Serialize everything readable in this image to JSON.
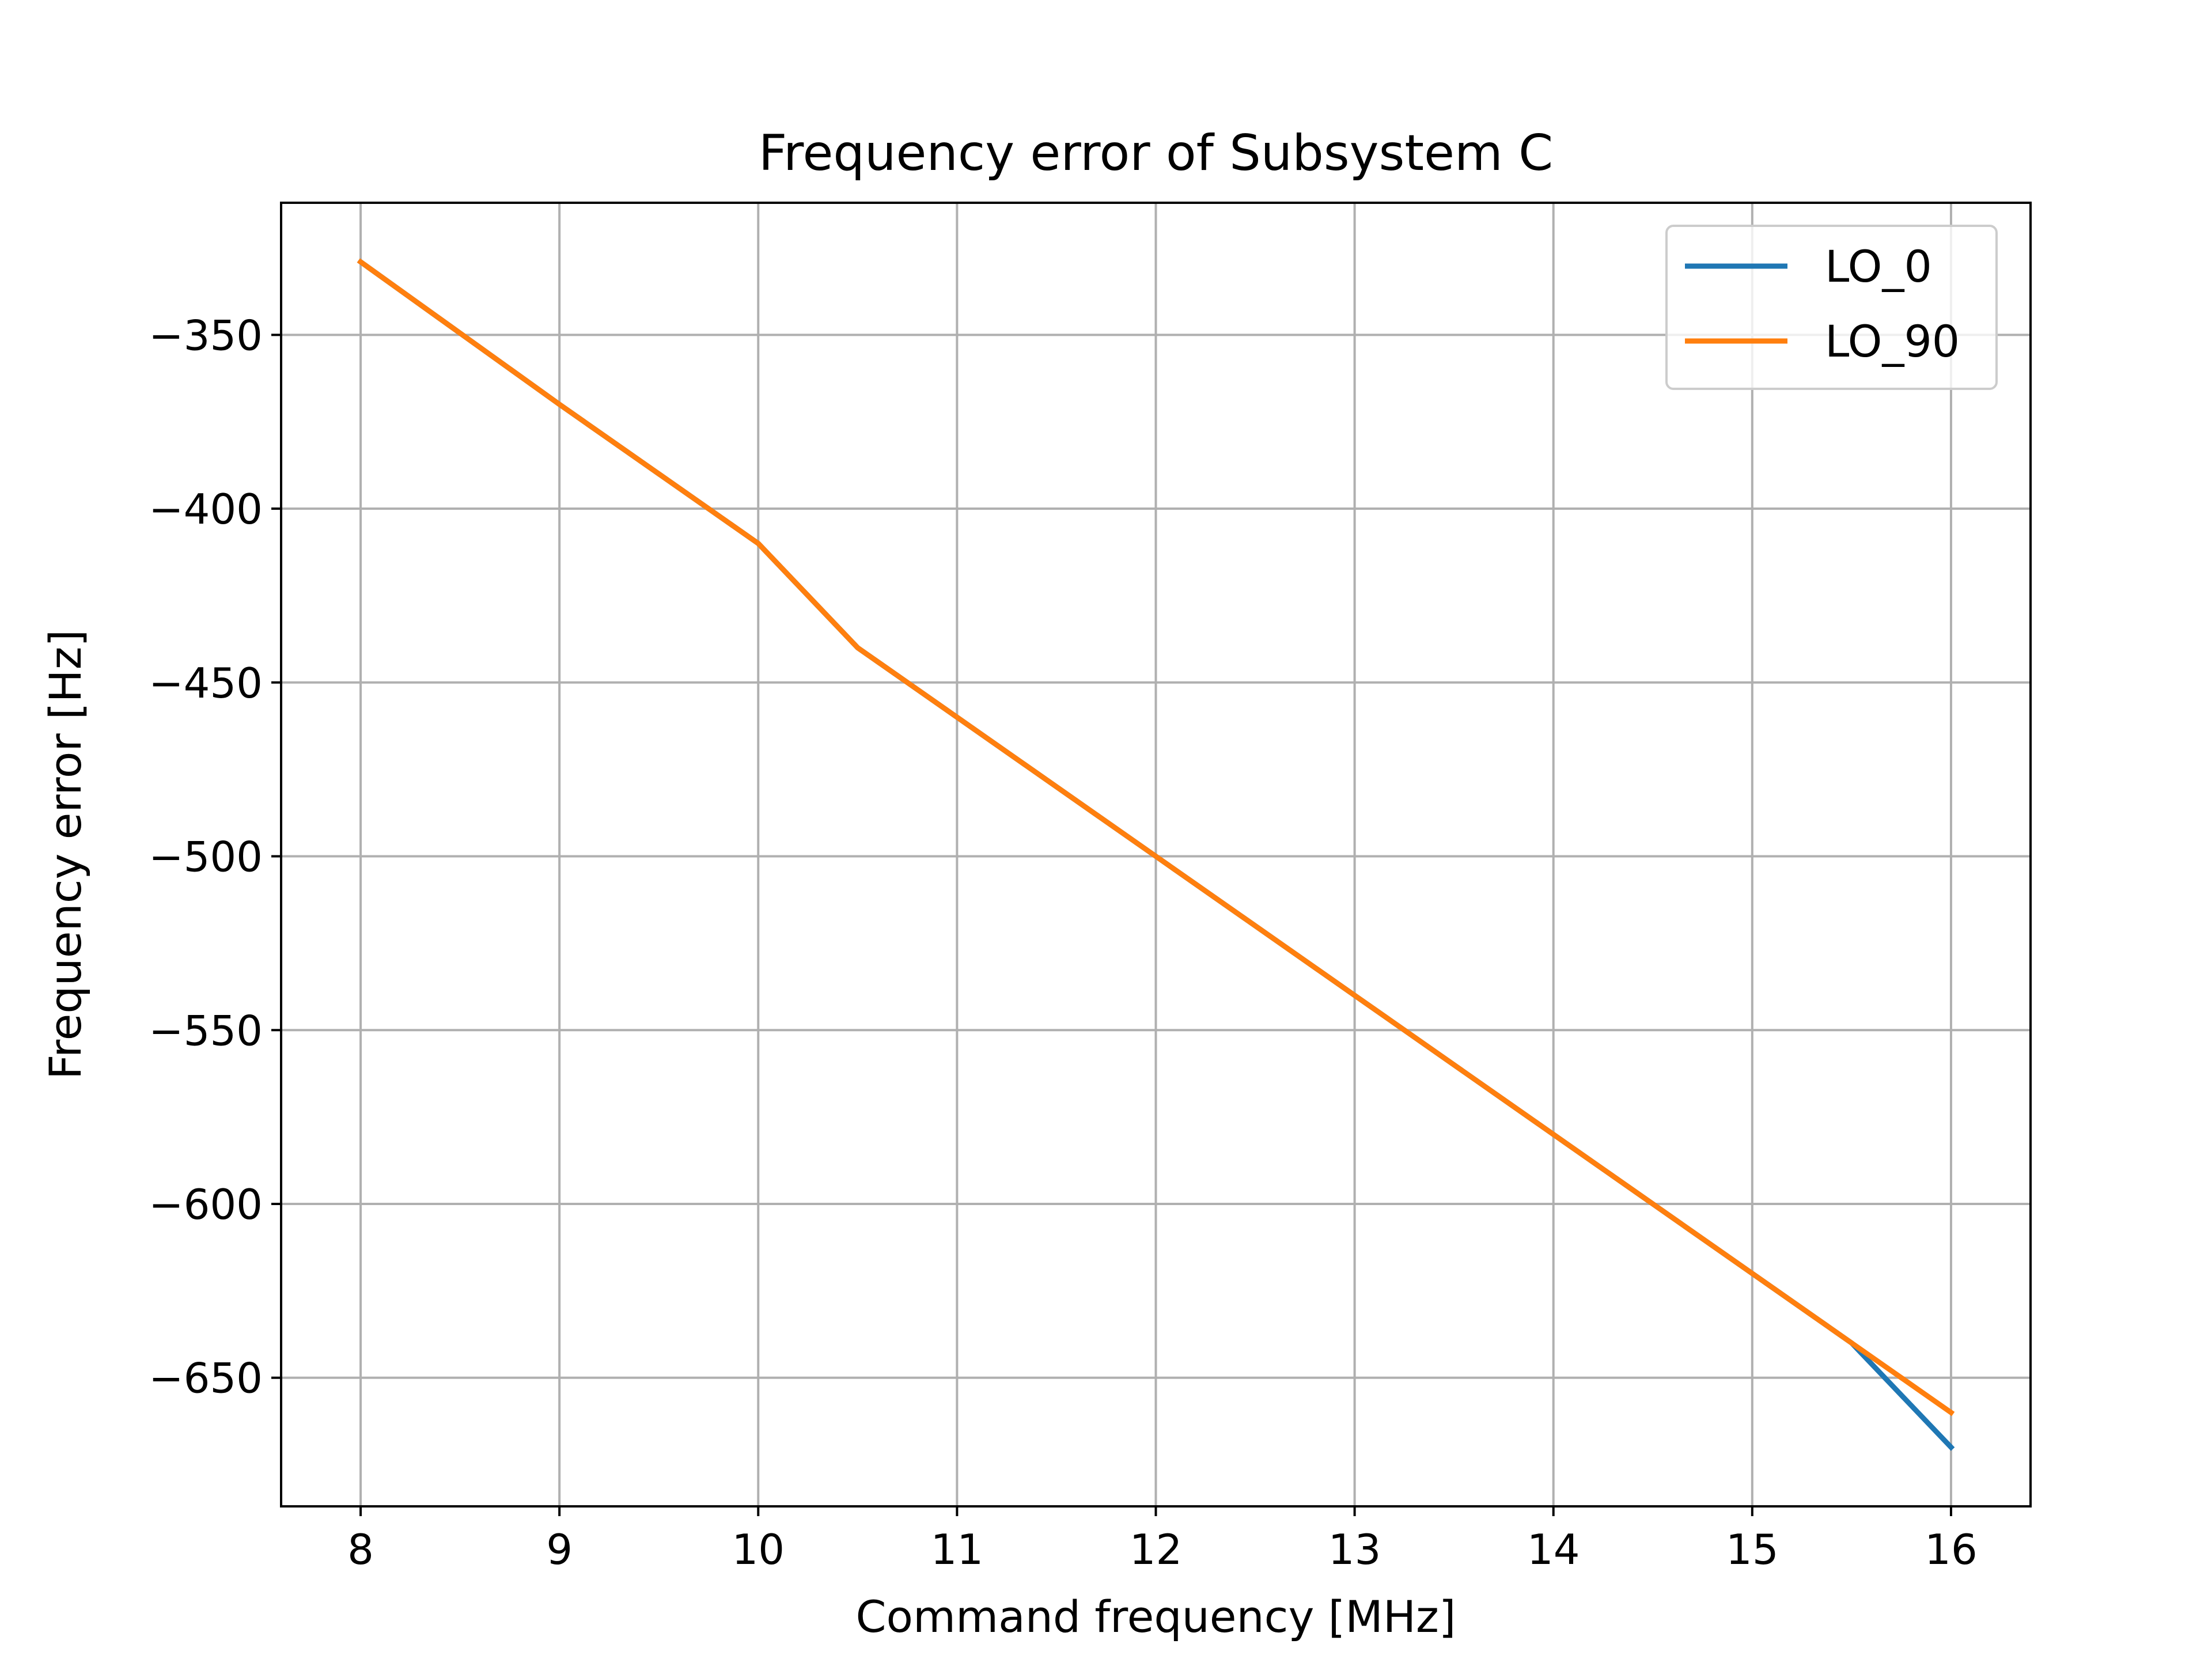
{
  "chart_data": {
    "type": "line",
    "title": "Frequency error of Subsystem C",
    "xlabel": "Command frequency [MHz]",
    "ylabel": "Frequency error [Hz]",
    "xlim": [
      7.6,
      16.4
    ],
    "ylim": [
      -687,
      -312
    ],
    "xticks": [
      8,
      9,
      10,
      11,
      12,
      13,
      14,
      15,
      16
    ],
    "yticks": [
      -650,
      -600,
      -550,
      -500,
      -450,
      -400,
      -350
    ],
    "xtick_labels": [
      "8",
      "9",
      "10",
      "11",
      "12",
      "13",
      "14",
      "15",
      "16"
    ],
    "ytick_labels": [
      "−650",
      "−600",
      "−550",
      "−500",
      "−450",
      "−400",
      "−350"
    ],
    "grid": true,
    "legend_position": "top-right",
    "series": [
      {
        "name": "LO_0",
        "color": "#1f77b4",
        "x": [
          8,
          9,
          10,
          10.5,
          11,
          12,
          13,
          14,
          15,
          15.5,
          16
        ],
        "y": [
          -329,
          -370,
          -410,
          -440,
          -460,
          -500,
          -540,
          -580,
          -620,
          -640,
          -670
        ]
      },
      {
        "name": "LO_90",
        "color": "#ff7f0e",
        "x": [
          8,
          9,
          10,
          10.5,
          11,
          12,
          13,
          14,
          15,
          15.5,
          16
        ],
        "y": [
          -329,
          -370,
          -410,
          -440,
          -460,
          -500,
          -540,
          -580,
          -620,
          -640,
          -660
        ]
      }
    ]
  }
}
